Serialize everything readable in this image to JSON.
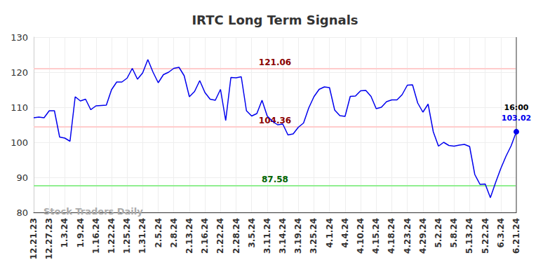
{
  "chart_data": {
    "type": "line",
    "title": "IRTC Long Term Signals",
    "categories": [
      "12.21.23",
      null,
      null,
      "12.27.23",
      null,
      null,
      "1.3.24",
      null,
      null,
      "1.9.24",
      null,
      null,
      "1.16.24",
      null,
      null,
      "1.22.24",
      null,
      null,
      "1.25.24",
      null,
      null,
      "1.31.24",
      null,
      null,
      "2.5.24",
      null,
      null,
      "2.8.24",
      null,
      null,
      "2.13.24",
      null,
      null,
      "2.16.24",
      null,
      null,
      "2.22.24",
      null,
      null,
      "2.28.24",
      null,
      null,
      "3.5.24",
      null,
      null,
      "3.11.24",
      null,
      null,
      "3.14.24",
      null,
      null,
      "3.19.24",
      null,
      null,
      "3.25.24",
      null,
      null,
      "4.1.24",
      null,
      null,
      "4.4.24",
      null,
      null,
      "4.10.24",
      null,
      null,
      "4.15.24",
      null,
      null,
      "4.18.24",
      null,
      null,
      "4.23.24",
      null,
      null,
      "4.29.24",
      null,
      null,
      "5.2.24",
      null,
      null,
      "5.8.24",
      null,
      null,
      "5.13.24",
      null,
      null,
      "5.22.24",
      null,
      null,
      "6.3.24",
      null,
      null,
      "6.21.24"
    ],
    "values": [
      107,
      107.2,
      107,
      109,
      109,
      101.5,
      101.2,
      100.3,
      113,
      111.8,
      112.3,
      109.3,
      110.4,
      110.5,
      110.6,
      115,
      117.2,
      117.2,
      118.3,
      121.1,
      118,
      119.8,
      123.6,
      120,
      117,
      119.3,
      120,
      121.1,
      121.4,
      119,
      113,
      114.5,
      117.6,
      114.2,
      112.3,
      112,
      115.1,
      106.2,
      118.5,
      118.4,
      118.7,
      109,
      107.5,
      108.2,
      112,
      107.5,
      106,
      105,
      105.2,
      102.1,
      102.4,
      104.3,
      105.5,
      109.8,
      113,
      115.1,
      115.8,
      115.6,
      109.2,
      107.6,
      107.4,
      113.1,
      113.2,
      114.7,
      114.8,
      113.1,
      109.6,
      110,
      111.6,
      112.1,
      112.1,
      113.6,
      116.3,
      116.4,
      111.2,
      108.6,
      110.9,
      103,
      98.9,
      100,
      99.1,
      98.9,
      99.2,
      99.4,
      98.8,
      90.8,
      88,
      88.1,
      84.2,
      88.5,
      92.5,
      96,
      99,
      103.02
    ],
    "color": "#0000ee",
    "ylim": [
      80,
      130
    ],
    "yticks": [
      80,
      90,
      100,
      110,
      120,
      130
    ],
    "grid": true,
    "reference_lines": [
      {
        "value": 121.06,
        "label": "121.06",
        "color": "#ffcccc"
      },
      {
        "value": 104.36,
        "label": "104.36",
        "color": "#ffcccc"
      },
      {
        "value": 87.58,
        "label": "87.58",
        "color": "#90ee90"
      }
    ],
    "last_point_annotation": {
      "time": "16:00",
      "value_label": "103.02"
    },
    "watermark": "Stock Traders Daily"
  }
}
